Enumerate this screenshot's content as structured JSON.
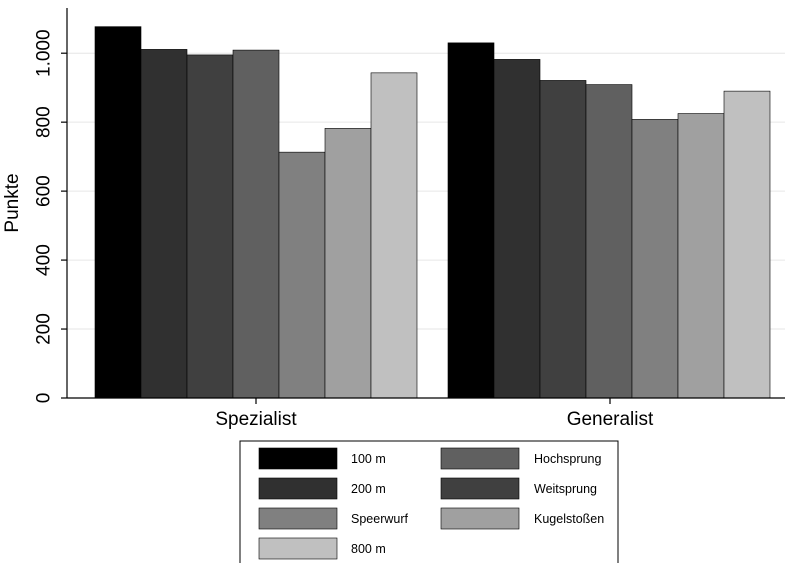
{
  "chart_data": {
    "type": "bar",
    "categories": [
      "Spezialist",
      "Generalist"
    ],
    "series": [
      {
        "name": "100 m",
        "values": [
          1077,
          1030
        ],
        "color": "#000000"
      },
      {
        "name": "200 m",
        "values": [
          1011,
          982
        ],
        "color": "#303030"
      },
      {
        "name": "Weitsprung",
        "values": [
          995,
          921
        ],
        "color": "#404040"
      },
      {
        "name": "Hochsprung",
        "values": [
          1009,
          909
        ],
        "color": "#606060"
      },
      {
        "name": "Speerwurf",
        "values": [
          713,
          808
        ],
        "color": "#808080"
      },
      {
        "name": "Kugelstoßen",
        "values": [
          782,
          825
        ],
        "color": "#a0a0a0"
      },
      {
        "name": "800 m",
        "values": [
          943,
          890
        ],
        "color": "#c0c0c0"
      }
    ],
    "ylabel": "Punkte",
    "ylim": [
      0,
      1100
    ],
    "yticks": [
      0,
      200,
      400,
      600,
      800,
      1000
    ],
    "ytick_labels": [
      "0",
      "200",
      "400",
      "600",
      "800",
      "1.000"
    ],
    "grid": true,
    "legend": {
      "placement": "bottom",
      "items": [
        "100 m",
        "Hochsprung",
        "200 m",
        "Weitsprung",
        "Speerwurf",
        "Kugelstoßen",
        "800 m"
      ]
    }
  }
}
